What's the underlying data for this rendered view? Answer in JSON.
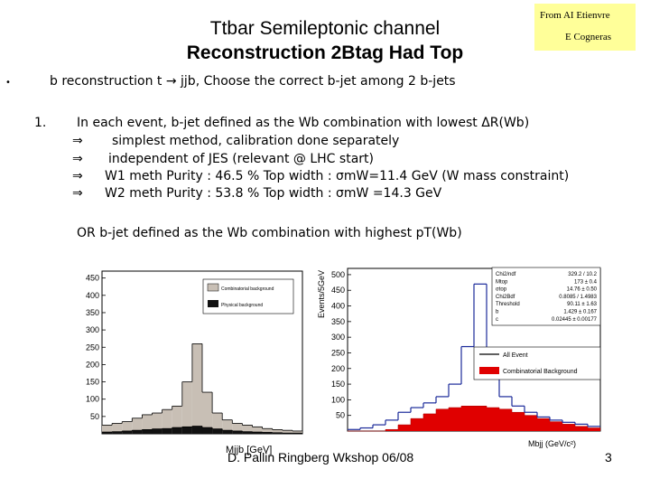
{
  "slide": {
    "title_line1": "Ttbar Semileptonic channel",
    "title_line2": "Reconstruction 2Btag Had Top",
    "note_line1": "From AI Etienvre",
    "note_line2": "E Cogneras",
    "bullet_symbol": "•",
    "subtitle": "b reconstruction t → jjb, Choose the correct b-jet among 2 b-jets",
    "item1_number": "1.",
    "item1_text": "In each event, b-jet defined as the Wb combination with lowest ΔR(Wb)",
    "implies_symbol": "⇒",
    "sub_items": [
      "simplest method, calibration done separately",
      "independent of JES (relevant @ LHC start)",
      "W1 meth Purity : 46.5 %   Top width : σmW=11.4 GeV (W mass constraint)",
      "W2 meth Purity : 53.8 %   Top width : σmW =14.3 GeV"
    ],
    "or_text": "OR b-jet defined as the Wb combination with highest pT(Wb)",
    "footer": "D. Pallin Ringberg Wkshop 06/08",
    "page_number": "3"
  },
  "chart_data": [
    {
      "type": "histogram",
      "title": "",
      "xlabel": "Mjjb [GeV]",
      "ylabel": "",
      "ylim": [
        0,
        470
      ],
      "y_ticks": [
        "450",
        "400",
        "350",
        "300",
        "250",
        "200",
        "150",
        "100",
        "50"
      ],
      "legend": [
        "Combinatorial background",
        "Physical background"
      ],
      "series": [
        {
          "name": "Combinatorial background",
          "values": [
            25,
            30,
            35,
            45,
            55,
            60,
            70,
            80,
            150,
            260,
            120,
            60,
            40,
            30,
            25,
            20,
            15,
            12,
            10,
            8
          ]
        },
        {
          "name": "Physical background",
          "values": [
            5,
            6,
            8,
            10,
            12,
            14,
            15,
            18,
            20,
            22,
            18,
            14,
            10,
            8,
            6,
            5,
            4,
            3,
            2,
            2
          ]
        }
      ]
    },
    {
      "type": "histogram",
      "title": "",
      "xlabel": "Mbjj (GeV/c²)",
      "ylabel": "Events/5GeV",
      "ylim": [
        0,
        520
      ],
      "y_ticks": [
        "500",
        "450",
        "400",
        "350",
        "300",
        "250",
        "200",
        "150",
        "100",
        "50"
      ],
      "legend": [
        "All Event",
        "Combinatorial Background"
      ],
      "stats": [
        {
          "label": "Chi2/ndf",
          "value": "329.2 / 10.2"
        },
        {
          "label": "Mtop",
          "value": "173 ± 0.4"
        },
        {
          "label": "σtop",
          "value": "14.76 ± 0.50"
        },
        {
          "label": "Chi2Bdf",
          "value": "0.8085 / 1.4983"
        },
        {
          "label": "Threshold",
          "value": "90.11 ± 1.63"
        },
        {
          "label": "b",
          "value": "1.429 ± 0.167"
        },
        {
          "label": "c",
          "value": "0.02445 ± 0.00177"
        }
      ],
      "series": [
        {
          "name": "All Event",
          "values": [
            5,
            10,
            20,
            35,
            60,
            75,
            90,
            110,
            150,
            270,
            470,
            250,
            110,
            80,
            60,
            45,
            35,
            28,
            22,
            15
          ]
        },
        {
          "name": "Combinatorial Background",
          "values": [
            0,
            0,
            0,
            5,
            20,
            40,
            55,
            70,
            75,
            80,
            80,
            75,
            70,
            60,
            50,
            40,
            30,
            22,
            15,
            10
          ]
        }
      ]
    }
  ]
}
